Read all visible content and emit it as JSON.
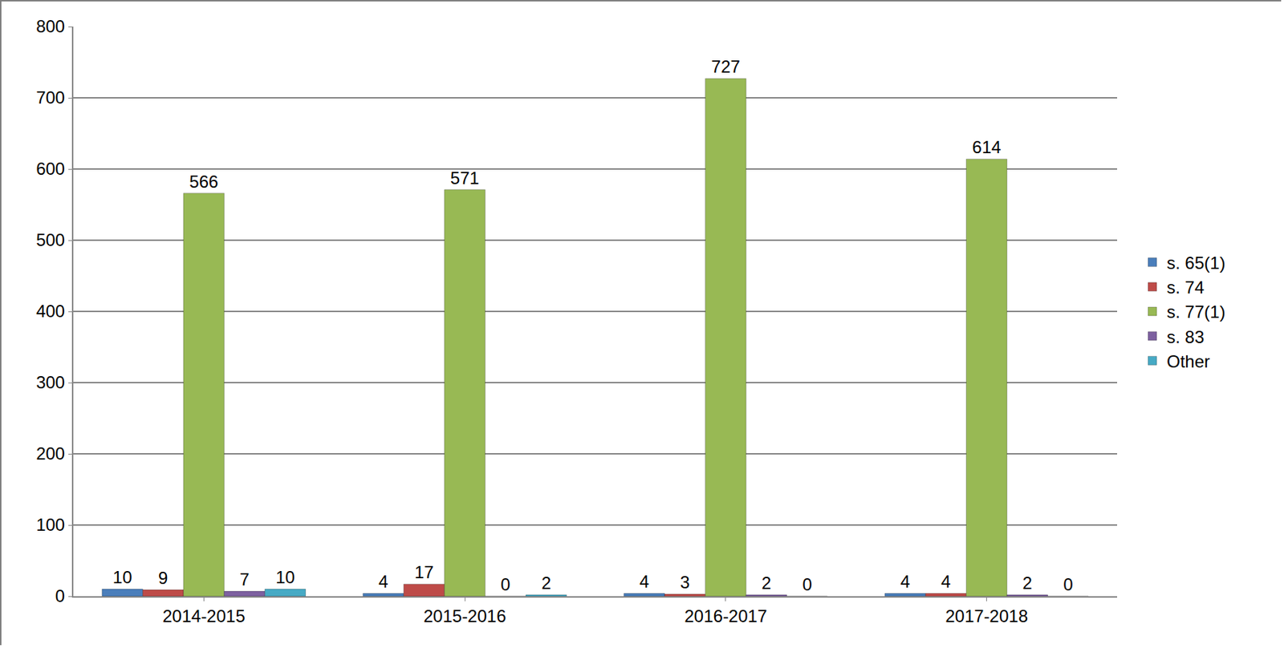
{
  "chart_data": {
    "type": "bar",
    "categories": [
      "2014-2015",
      "2015-2016",
      "2016-2017",
      "2017-2018"
    ],
    "series": [
      {
        "name": "s. 65(1)",
        "color": "#4a7ebb",
        "values": [
          10,
          4,
          4,
          4
        ]
      },
      {
        "name": "s. 74",
        "color": "#be4b48",
        "values": [
          9,
          17,
          3,
          4
        ]
      },
      {
        "name": "s. 77(1)",
        "color": "#98b954",
        "values": [
          566,
          571,
          727,
          614
        ]
      },
      {
        "name": "s. 83",
        "color": "#7d60a0",
        "values": [
          7,
          0,
          2,
          2
        ]
      },
      {
        "name": "Other",
        "color": "#46aac5",
        "values": [
          10,
          2,
          0,
          0
        ]
      }
    ],
    "ylim": [
      0,
      800
    ],
    "yticks": [
      0,
      100,
      200,
      300,
      400,
      500,
      600,
      700,
      800
    ],
    "grid": true,
    "legend": "right",
    "data_labels": true
  }
}
